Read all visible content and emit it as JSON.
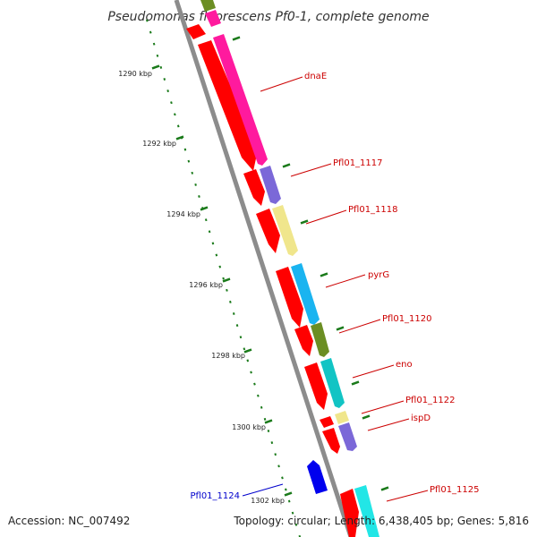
{
  "title": "Pseudomonas fluorescens Pf0-1, complete genome",
  "accession": "Accession: NC_007492",
  "summary": "Topology: circular; Length: 6,438,405 bp; Genes: 5,816",
  "colors": {
    "backbone": "#8c8c8c",
    "cds_ring": "#ff0000",
    "tick": "#1a7a1a",
    "gene_label": "#cc0000",
    "reverse_gene_label": "#0000cc"
  },
  "kbp_ticks": [
    "1290 kbp",
    "1292 kbp",
    "1294 kbp",
    "1296 kbp",
    "1298 kbp",
    "1300 kbp",
    "1302 kbp"
  ],
  "genes": [
    {
      "name": "dnaE",
      "strand": "forward",
      "color": "#ff1a9e"
    },
    {
      "name": "Pfl01_1117",
      "strand": "forward",
      "color": "#7b68d8"
    },
    {
      "name": "Pfl01_1118",
      "strand": "forward",
      "color": "#f0e68c"
    },
    {
      "name": "pyrG",
      "strand": "forward",
      "color": "#1ab4f0"
    },
    {
      "name": "Pfl01_1120",
      "strand": "forward",
      "color": "#6b8e23"
    },
    {
      "name": "eno",
      "strand": "forward",
      "color": "#12c4c4"
    },
    {
      "name": "Pfl01_1122",
      "strand": "forward",
      "color": "#f0e68c"
    },
    {
      "name": "ispD",
      "strand": "forward",
      "color": "#7b68d8"
    },
    {
      "name": "Pfl01_1124",
      "strand": "reverse",
      "color": "#0000ee"
    },
    {
      "name": "Pfl01_1125",
      "strand": "forward",
      "color": "#22e6e6"
    }
  ]
}
